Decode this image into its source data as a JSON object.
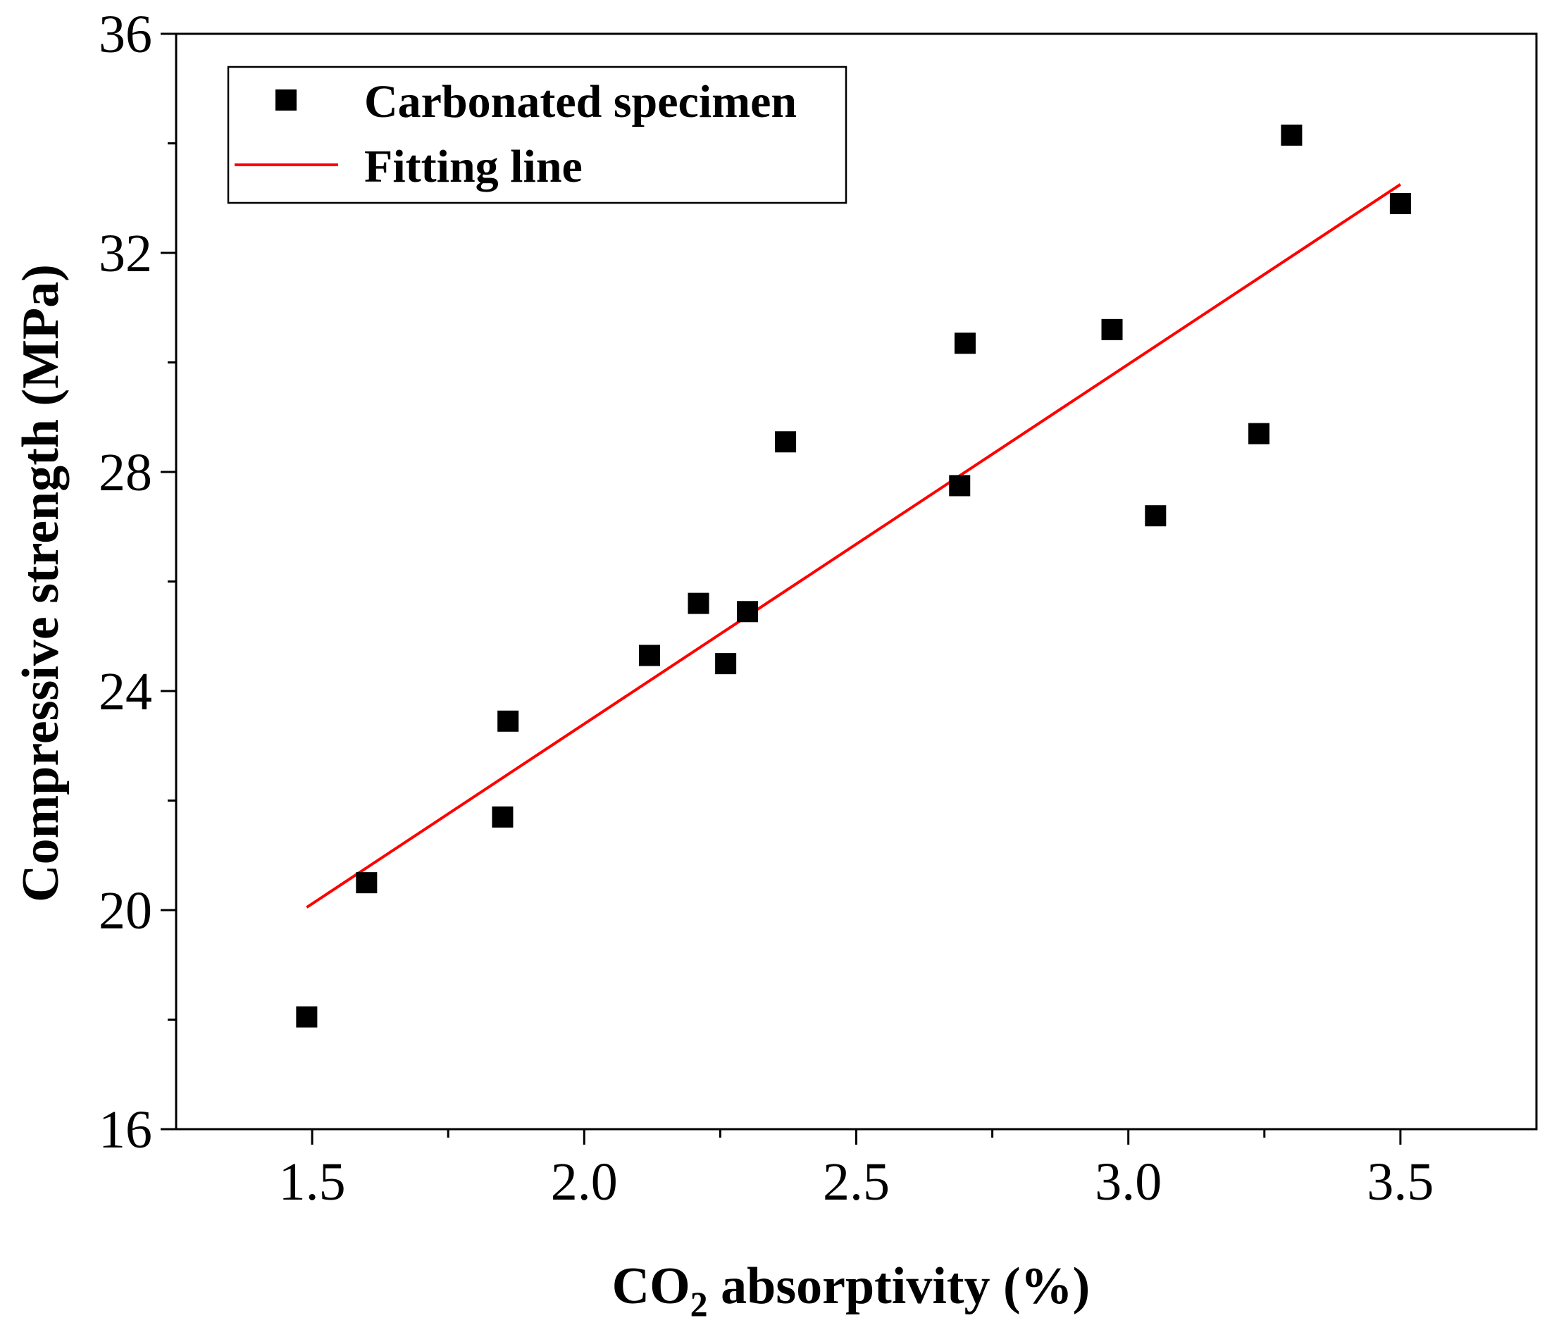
{
  "chart_data": {
    "type": "scatter",
    "title": "",
    "xlabel_main": "CO",
    "xlabel_sub": "2",
    "xlabel_rest": " absorptivity (%)",
    "ylabel": "Compressive strength (MPa)",
    "xlim": [
      1.25,
      3.75
    ],
    "ylim": [
      16,
      36
    ],
    "xticks": [
      1.5,
      2.0,
      2.5,
      3.0,
      3.5
    ],
    "xtick_labels": [
      "1.5",
      "2.0",
      "2.5",
      "3.0",
      "3.5"
    ],
    "yticks": [
      16,
      20,
      24,
      28,
      32,
      36
    ],
    "ytick_labels": [
      "16",
      "20",
      "24",
      "28",
      "32",
      "36"
    ],
    "xminor": [
      1.75,
      2.25,
      2.75,
      3.25
    ],
    "yminor": [
      18,
      22,
      26,
      30,
      34
    ],
    "legend_position": "top-left",
    "series": [
      {
        "name": "Carbonated specimen",
        "kind": "scatter",
        "marker": "square",
        "color": "#000000",
        "x": [
          1.49,
          1.6,
          1.85,
          1.86,
          2.12,
          2.21,
          2.26,
          2.3,
          2.37,
          2.69,
          2.7,
          2.97,
          3.05,
          3.24,
          3.3,
          3.5
        ],
        "y": [
          18.05,
          20.5,
          21.7,
          23.45,
          24.65,
          25.6,
          24.5,
          25.45,
          28.55,
          27.75,
          30.35,
          30.6,
          27.2,
          28.7,
          34.15,
          32.9
        ]
      },
      {
        "name": "Fitting line",
        "kind": "line",
        "color": "#ff0000",
        "x": [
          1.49,
          3.5
        ],
        "y": [
          20.05,
          33.25
        ]
      }
    ]
  }
}
